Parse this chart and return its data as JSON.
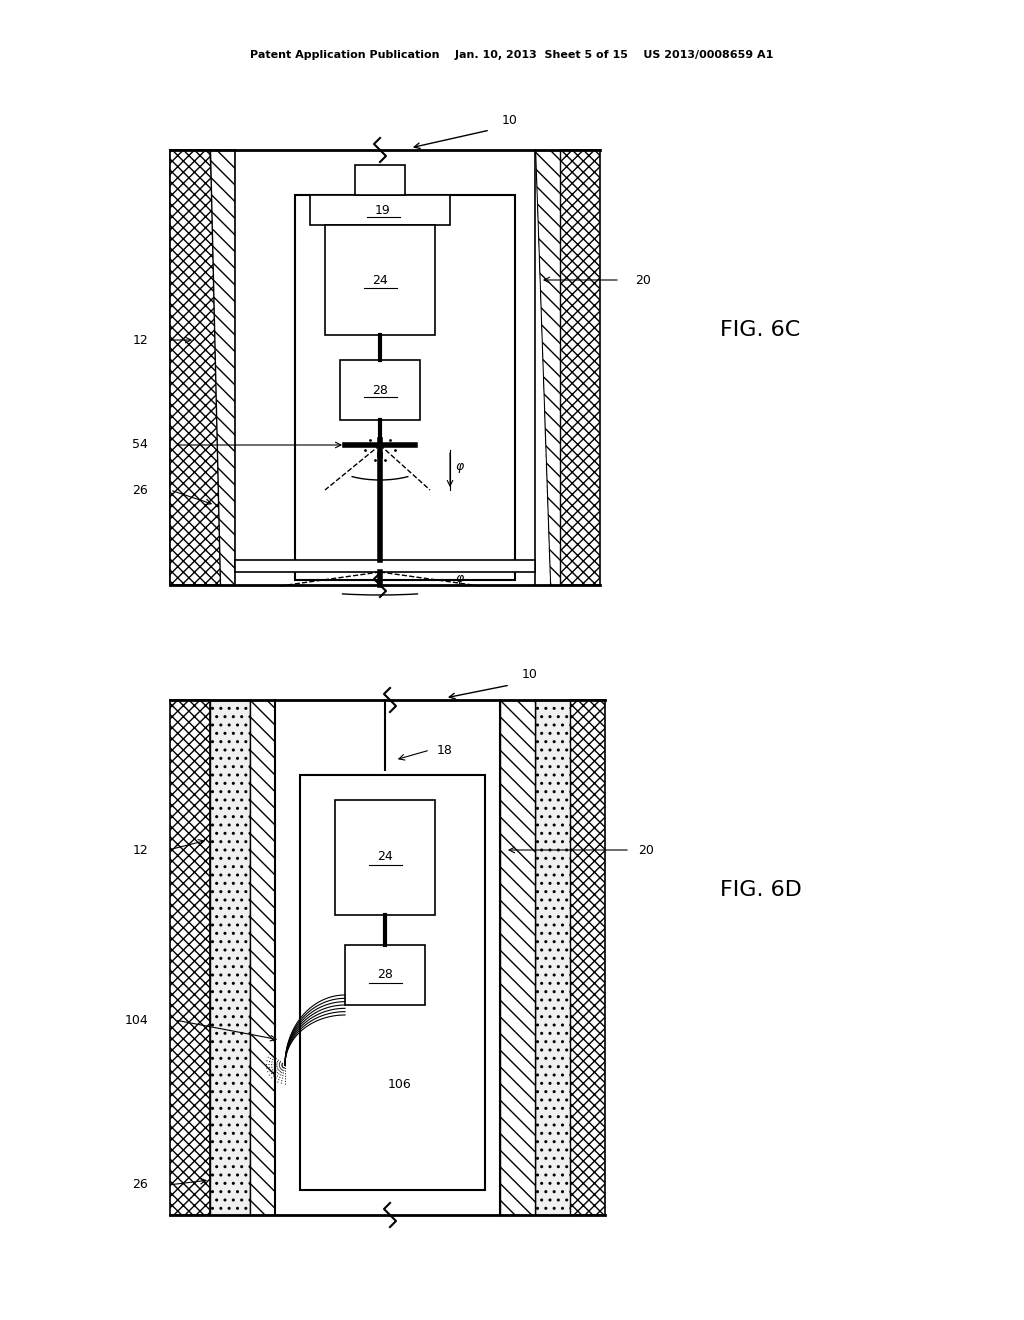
{
  "bg_color": "#ffffff",
  "lc": "#000000",
  "header": "Patent Application Publication    Jan. 10, 2013  Sheet 5 of 15    US 2013/0008659 A1",
  "fig6c": "FIG. 6C",
  "fig6d": "FIG. 6D",
  "fig_w": 10.24,
  "fig_h": 13.2,
  "dpi": 100
}
